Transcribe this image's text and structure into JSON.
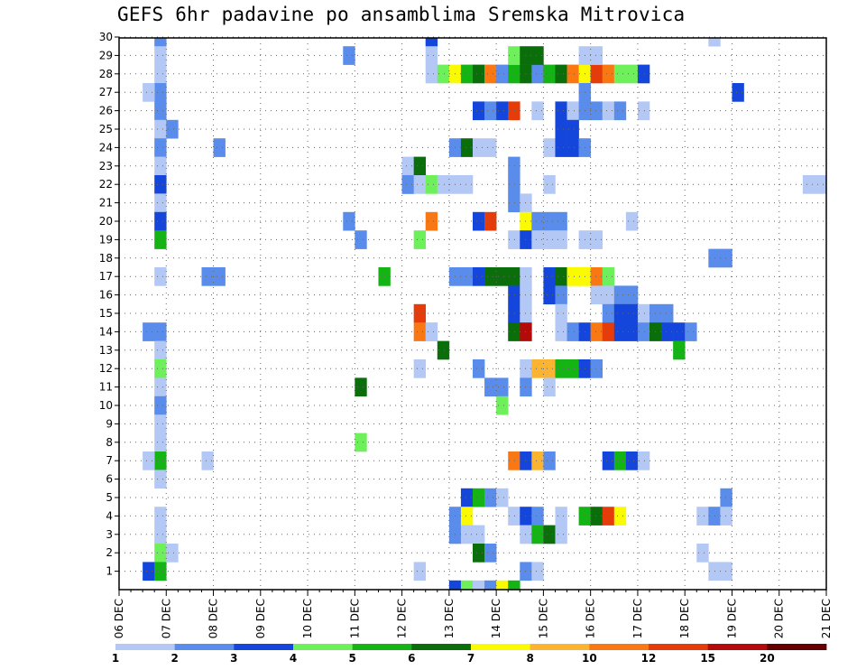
{
  "chart_data": {
    "type": "heatmap",
    "title": "GEFS 6hr padavine po ansamblima Sremska Mitrovica",
    "x_tick_labels": [
      "06 DEC",
      "07 DEC",
      "08 DEC",
      "09 DEC",
      "10 DEC",
      "11 DEC",
      "12 DEC",
      "13 DEC",
      "14 DEC",
      "15 DEC",
      "16 DEC",
      "17 DEC",
      "18 DEC",
      "19 DEC",
      "20 DEC",
      "21 DEC"
    ],
    "y_tick_labels": [
      "1",
      "2",
      "3",
      "4",
      "5",
      "6",
      "7",
      "8",
      "9",
      "10",
      "11",
      "12",
      "13",
      "14",
      "15",
      "16",
      "17",
      "18",
      "19",
      "20",
      "21",
      "22",
      "23",
      "24",
      "25",
      "26",
      "27",
      "28",
      "29",
      "30"
    ],
    "xlim": [
      0,
      60
    ],
    "ylim": [
      0,
      30
    ],
    "grid": true,
    "colorbar": {
      "labels": [
        "1",
        "2",
        "3",
        "4",
        "5",
        "6",
        "7",
        "8",
        "10",
        "12",
        "15",
        "20"
      ],
      "colors": [
        "#b4c8f5",
        "#5a8cec",
        "#1446dc",
        "#6ef05a",
        "#14b414",
        "#0a6e0a",
        "#fafa00",
        "#fab432",
        "#fa7814",
        "#e63c0a",
        "#b40a0a",
        "#640000"
      ]
    },
    "note_cells": "each cell: [x index (6-hour step since start), y index (ensemble row, 0 = bottom), color bin 0-11]",
    "cells": [
      [
        3,
        29,
        1
      ],
      [
        3,
        28,
        0
      ],
      [
        3,
        27,
        0
      ],
      [
        3,
        26,
        1
      ],
      [
        2,
        26,
        0
      ],
      [
        3,
        25,
        1
      ],
      [
        3,
        24,
        0
      ],
      [
        3,
        23,
        1
      ],
      [
        3,
        22,
        0
      ],
      [
        3,
        21,
        2
      ],
      [
        3,
        20,
        0
      ],
      [
        3,
        19,
        2
      ],
      [
        3,
        18,
        4
      ],
      [
        3,
        16,
        0
      ],
      [
        3,
        13,
        1
      ],
      [
        2,
        13,
        1
      ],
      [
        3,
        12,
        0
      ],
      [
        3,
        11,
        3
      ],
      [
        3,
        10,
        0
      ],
      [
        3,
        9,
        1
      ],
      [
        3,
        8,
        0
      ],
      [
        3,
        7,
        0
      ],
      [
        3,
        6,
        4
      ],
      [
        2,
        6,
        0
      ],
      [
        3,
        5,
        0
      ],
      [
        3,
        3,
        0
      ],
      [
        3,
        2,
        0
      ],
      [
        3,
        1,
        3
      ],
      [
        4,
        1,
        0
      ],
      [
        2,
        0,
        2
      ],
      [
        3,
        0,
        4
      ],
      [
        4,
        24,
        1
      ],
      [
        8,
        23,
        1
      ],
      [
        7,
        16,
        1
      ],
      [
        8,
        16,
        1
      ],
      [
        7,
        6,
        0
      ],
      [
        19,
        28,
        1
      ],
      [
        19,
        19,
        1
      ],
      [
        20,
        18,
        1
      ],
      [
        20,
        10,
        5
      ],
      [
        20,
        7,
        3
      ],
      [
        22,
        16,
        4
      ],
      [
        24,
        22,
        0
      ],
      [
        24,
        21,
        1
      ],
      [
        25,
        22,
        5
      ],
      [
        24,
        21,
        1
      ],
      [
        25,
        21,
        0
      ],
      [
        25,
        11,
        0
      ],
      [
        25,
        14,
        9
      ],
      [
        26,
        21,
        3
      ],
      [
        25,
        18,
        3
      ],
      [
        26,
        19,
        8
      ],
      [
        26,
        13,
        0
      ],
      [
        26,
        29,
        2
      ],
      [
        26,
        28,
        0
      ],
      [
        26,
        27,
        0
      ],
      [
        27,
        27,
        3
      ],
      [
        28,
        27,
        6
      ],
      [
        29,
        27,
        4
      ],
      [
        30,
        27,
        5
      ],
      [
        31,
        27,
        8
      ],
      [
        32,
        27,
        1
      ],
      [
        33,
        27,
        4
      ],
      [
        34,
        27,
        5
      ],
      [
        35,
        27,
        1
      ],
      [
        36,
        27,
        4
      ],
      [
        37,
        27,
        5
      ],
      [
        38,
        27,
        8
      ],
      [
        39,
        27,
        6
      ],
      [
        40,
        27,
        9
      ],
      [
        41,
        27,
        8
      ],
      [
        42,
        27,
        3
      ],
      [
        43,
        27,
        3
      ],
      [
        44,
        27,
        2
      ],
      [
        33,
        28,
        3
      ],
      [
        34,
        28,
        5
      ],
      [
        35,
        28,
        5
      ],
      [
        39,
        28,
        0
      ],
      [
        40,
        28,
        0
      ],
      [
        39,
        26,
        1
      ],
      [
        30,
        25,
        2
      ],
      [
        31,
        25,
        1
      ],
      [
        32,
        25,
        2
      ],
      [
        33,
        25,
        9
      ],
      [
        35,
        25,
        0
      ],
      [
        37,
        25,
        2
      ],
      [
        38,
        25,
        0
      ],
      [
        39,
        25,
        1
      ],
      [
        40,
        25,
        1
      ],
      [
        41,
        25,
        0
      ],
      [
        42,
        25,
        1
      ],
      [
        44,
        25,
        0
      ],
      [
        37,
        24,
        2
      ],
      [
        38,
        24,
        2
      ],
      [
        28,
        23,
        1
      ],
      [
        29,
        23,
        5
      ],
      [
        30,
        23,
        0
      ],
      [
        31,
        23,
        0
      ],
      [
        36,
        23,
        0
      ],
      [
        37,
        23,
        2
      ],
      [
        38,
        23,
        2
      ],
      [
        39,
        23,
        1
      ],
      [
        33,
        22,
        1
      ],
      [
        33,
        21,
        1
      ],
      [
        27,
        21,
        0
      ],
      [
        28,
        21,
        0
      ],
      [
        29,
        21,
        0
      ],
      [
        36,
        21,
        0
      ],
      [
        33,
        20,
        1
      ],
      [
        34,
        20,
        0
      ],
      [
        30,
        19,
        2
      ],
      [
        31,
        19,
        9
      ],
      [
        34,
        19,
        6
      ],
      [
        35,
        19,
        1
      ],
      [
        36,
        19,
        1
      ],
      [
        37,
        19,
        1
      ],
      [
        43,
        19,
        0
      ],
      [
        33,
        18,
        0
      ],
      [
        34,
        18,
        2
      ],
      [
        35,
        18,
        0
      ],
      [
        36,
        18,
        0
      ],
      [
        37,
        18,
        0
      ],
      [
        39,
        18,
        0
      ],
      [
        40,
        18,
        0
      ],
      [
        28,
        16,
        1
      ],
      [
        29,
        16,
        1
      ],
      [
        30,
        16,
        2
      ],
      [
        31,
        16,
        5
      ],
      [
        32,
        16,
        5
      ],
      [
        33,
        16,
        5
      ],
      [
        34,
        16,
        0
      ],
      [
        36,
        16,
        2
      ],
      [
        37,
        16,
        5
      ],
      [
        38,
        16,
        6
      ],
      [
        39,
        16,
        6
      ],
      [
        40,
        16,
        8
      ],
      [
        41,
        16,
        3
      ],
      [
        33,
        15,
        2
      ],
      [
        34,
        15,
        0
      ],
      [
        36,
        15,
        2
      ],
      [
        37,
        15,
        1
      ],
      [
        40,
        15,
        0
      ],
      [
        41,
        15,
        0
      ],
      [
        42,
        15,
        1
      ],
      [
        43,
        15,
        1
      ],
      [
        33,
        14,
        2
      ],
      [
        34,
        14,
        0
      ],
      [
        37,
        14,
        0
      ],
      [
        41,
        14,
        1
      ],
      [
        42,
        14,
        2
      ],
      [
        43,
        14,
        2
      ],
      [
        44,
        14,
        0
      ],
      [
        45,
        14,
        1
      ],
      [
        46,
        14,
        1
      ],
      [
        25,
        13,
        8
      ],
      [
        26,
        13,
        0
      ],
      [
        33,
        13,
        5
      ],
      [
        34,
        13,
        10
      ],
      [
        37,
        13,
        0
      ],
      [
        38,
        13,
        1
      ],
      [
        39,
        13,
        2
      ],
      [
        40,
        13,
        8
      ],
      [
        41,
        13,
        9
      ],
      [
        42,
        13,
        2
      ],
      [
        43,
        13,
        2
      ],
      [
        44,
        13,
        1
      ],
      [
        45,
        13,
        5
      ],
      [
        46,
        13,
        2
      ],
      [
        47,
        13,
        2
      ],
      [
        48,
        13,
        1
      ],
      [
        47,
        12,
        4
      ],
      [
        27,
        12,
        5
      ],
      [
        30,
        11,
        1
      ],
      [
        34,
        11,
        0
      ],
      [
        35,
        11,
        7
      ],
      [
        36,
        11,
        7
      ],
      [
        37,
        11,
        4
      ],
      [
        38,
        11,
        4
      ],
      [
        39,
        11,
        2
      ],
      [
        40,
        11,
        1
      ],
      [
        31,
        10,
        1
      ],
      [
        32,
        10,
        1
      ],
      [
        34,
        10,
        1
      ],
      [
        36,
        10,
        0
      ],
      [
        32,
        9,
        3
      ],
      [
        33,
        6,
        8
      ],
      [
        34,
        6,
        2
      ],
      [
        35,
        6,
        7
      ],
      [
        36,
        6,
        1
      ],
      [
        41,
        6,
        2
      ],
      [
        42,
        6,
        4
      ],
      [
        43,
        6,
        2
      ],
      [
        44,
        6,
        0
      ],
      [
        29,
        4,
        2
      ],
      [
        30,
        4,
        4
      ],
      [
        31,
        4,
        1
      ],
      [
        32,
        4,
        0
      ],
      [
        51,
        4,
        1
      ],
      [
        28,
        3,
        1
      ],
      [
        29,
        3,
        6
      ],
      [
        33,
        3,
        0
      ],
      [
        34,
        3,
        2
      ],
      [
        35,
        3,
        1
      ],
      [
        37,
        3,
        0
      ],
      [
        39,
        3,
        4
      ],
      [
        40,
        3,
        5
      ],
      [
        41,
        3,
        9
      ],
      [
        42,
        3,
        6
      ],
      [
        49,
        3,
        0
      ],
      [
        50,
        3,
        1
      ],
      [
        51,
        3,
        0
      ],
      [
        28,
        2,
        1
      ],
      [
        29,
        2,
        0
      ],
      [
        30,
        2,
        0
      ],
      [
        34,
        2,
        0
      ],
      [
        35,
        2,
        4
      ],
      [
        36,
        2,
        5
      ],
      [
        37,
        2,
        0
      ],
      [
        30,
        1,
        5
      ],
      [
        31,
        1,
        1
      ],
      [
        49,
        1,
        0
      ],
      [
        25,
        0,
        0
      ],
      [
        34,
        0,
        1
      ],
      [
        35,
        0,
        0
      ],
      [
        50,
        0,
        0
      ],
      [
        51,
        0,
        0
      ],
      [
        28,
        -1,
        2
      ],
      [
        29,
        -1,
        3
      ],
      [
        30,
        -1,
        0
      ],
      [
        31,
        -1,
        1
      ],
      [
        32,
        -1,
        6
      ],
      [
        33,
        -1,
        4
      ],
      [
        50,
        29,
        0
      ],
      [
        52,
        26,
        2
      ],
      [
        50,
        17,
        1
      ],
      [
        51,
        17,
        1
      ],
      [
        58,
        21,
        0
      ],
      [
        59,
        21,
        0
      ]
    ]
  }
}
